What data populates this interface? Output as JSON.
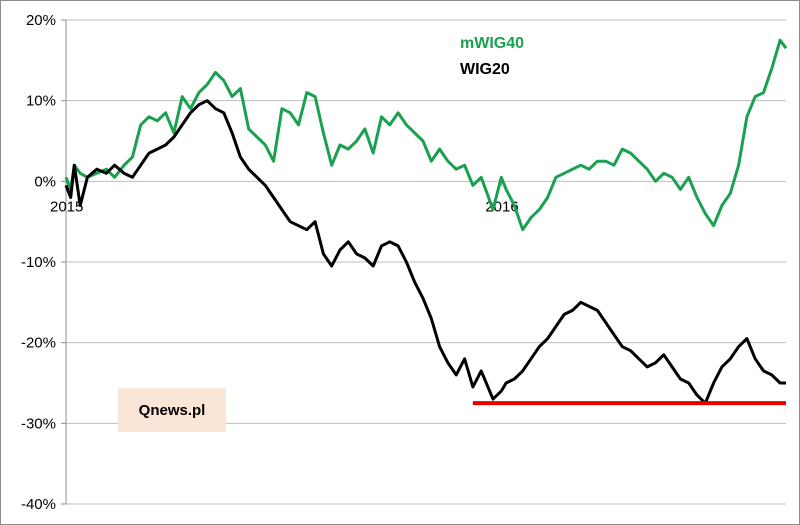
{
  "chart_data": {
    "type": "line",
    "title": "",
    "xlabel": "",
    "ylabel": "",
    "ylim": [
      -40,
      20
    ],
    "y_ticks": [
      "20%",
      "10%",
      "0%",
      "-10%",
      "-20%",
      "-30%",
      "-40%"
    ],
    "y_tick_values": [
      20,
      10,
      0,
      -10,
      -20,
      -30,
      -40
    ],
    "x_range": [
      "2015-01-02",
      "2016-08-31"
    ],
    "x_tick_labels": [
      {
        "label": "2015",
        "date": "2015-01-02"
      },
      {
        "label": "2016",
        "date": "2016-01-04"
      }
    ],
    "grid": "horizontal",
    "legend_placement": "top-right",
    "series": [
      {
        "name": "mWIG40",
        "color": "#1aa150",
        "dates": [
          "2015-01-02",
          "2015-01-06",
          "2015-01-09",
          "2015-01-14",
          "2015-01-20",
          "2015-01-28",
          "2015-02-05",
          "2015-02-12",
          "2015-02-20",
          "2015-02-27",
          "2015-03-06",
          "2015-03-13",
          "2015-03-20",
          "2015-03-27",
          "2015-04-03",
          "2015-04-10",
          "2015-04-17",
          "2015-04-24",
          "2015-05-01",
          "2015-05-08",
          "2015-05-15",
          "2015-05-22",
          "2015-05-29",
          "2015-06-05",
          "2015-06-12",
          "2015-06-19",
          "2015-06-26",
          "2015-07-03",
          "2015-07-10",
          "2015-07-17",
          "2015-07-24",
          "2015-07-31",
          "2015-08-07",
          "2015-08-14",
          "2015-08-21",
          "2015-08-28",
          "2015-09-04",
          "2015-09-11",
          "2015-09-18",
          "2015-09-25",
          "2015-10-02",
          "2015-10-09",
          "2015-10-16",
          "2015-10-23",
          "2015-10-30",
          "2015-11-06",
          "2015-11-13",
          "2015-11-20",
          "2015-11-27",
          "2015-12-04",
          "2015-12-11",
          "2015-12-18",
          "2015-12-28",
          "2016-01-04",
          "2016-01-08",
          "2016-01-15",
          "2016-01-22",
          "2016-01-29",
          "2016-02-05",
          "2016-02-12",
          "2016-02-19",
          "2016-02-26",
          "2016-03-04",
          "2016-03-11",
          "2016-03-18",
          "2016-03-25",
          "2016-04-01",
          "2016-04-08",
          "2016-04-15",
          "2016-04-22",
          "2016-04-29",
          "2016-05-06",
          "2016-05-13",
          "2016-05-20",
          "2016-05-27",
          "2016-06-03",
          "2016-06-10",
          "2016-06-17",
          "2016-06-24",
          "2016-07-01",
          "2016-07-08",
          "2016-07-15",
          "2016-07-22",
          "2016-07-29",
          "2016-08-05",
          "2016-08-12",
          "2016-08-19",
          "2016-08-26",
          "2016-08-31"
        ],
        "values": [
          0.5,
          -1.0,
          2.0,
          1.0,
          0.5,
          1.0,
          1.5,
          0.5,
          2.0,
          3.0,
          7.0,
          8.0,
          7.5,
          8.5,
          6.0,
          10.5,
          9.0,
          11.0,
          12.0,
          13.5,
          12.5,
          10.5,
          11.5,
          6.5,
          5.5,
          4.5,
          2.5,
          9.0,
          8.5,
          7.0,
          11.0,
          10.5,
          6.0,
          2.0,
          4.5,
          4.0,
          5.0,
          6.5,
          3.5,
          8.0,
          7.0,
          8.5,
          7.0,
          6.0,
          5.0,
          2.5,
          4.0,
          2.5,
          1.5,
          2.0,
          -0.5,
          0.5,
          -3.5,
          0.5,
          -1.0,
          -3.0,
          -6.0,
          -4.5,
          -3.5,
          -2.0,
          0.5,
          1.0,
          1.5,
          2.0,
          1.5,
          2.5,
          2.5,
          2.0,
          4.0,
          3.5,
          2.5,
          1.5,
          0.0,
          1.0,
          0.5,
          -1.0,
          0.5,
          -2.0,
          -4.0,
          -5.5,
          -3.0,
          -1.5,
          2.0,
          8.0,
          10.5,
          11.0,
          14.0,
          17.5,
          16.5
        ]
      },
      {
        "name": "WIG20",
        "color": "#000000",
        "dates": [
          "2015-01-02",
          "2015-01-06",
          "2015-01-09",
          "2015-01-14",
          "2015-01-20",
          "2015-01-28",
          "2015-02-05",
          "2015-02-12",
          "2015-02-20",
          "2015-02-27",
          "2015-03-06",
          "2015-03-13",
          "2015-03-20",
          "2015-03-27",
          "2015-04-03",
          "2015-04-10",
          "2015-04-17",
          "2015-04-24",
          "2015-05-01",
          "2015-05-08",
          "2015-05-15",
          "2015-05-22",
          "2015-05-29",
          "2015-06-05",
          "2015-06-12",
          "2015-06-19",
          "2015-06-26",
          "2015-07-03",
          "2015-07-10",
          "2015-07-17",
          "2015-07-24",
          "2015-07-31",
          "2015-08-07",
          "2015-08-14",
          "2015-08-21",
          "2015-08-28",
          "2015-09-04",
          "2015-09-11",
          "2015-09-18",
          "2015-09-25",
          "2015-10-02",
          "2015-10-09",
          "2015-10-16",
          "2015-10-23",
          "2015-10-30",
          "2015-11-06",
          "2015-11-13",
          "2015-11-20",
          "2015-11-27",
          "2015-12-04",
          "2015-12-11",
          "2015-12-18",
          "2015-12-28",
          "2016-01-04",
          "2016-01-08",
          "2016-01-15",
          "2016-01-22",
          "2016-01-29",
          "2016-02-05",
          "2016-02-12",
          "2016-02-19",
          "2016-02-26",
          "2016-03-04",
          "2016-03-11",
          "2016-03-18",
          "2016-03-25",
          "2016-04-01",
          "2016-04-08",
          "2016-04-15",
          "2016-04-22",
          "2016-04-29",
          "2016-05-06",
          "2016-05-13",
          "2016-05-20",
          "2016-05-27",
          "2016-06-03",
          "2016-06-10",
          "2016-06-17",
          "2016-06-24",
          "2016-07-01",
          "2016-07-08",
          "2016-07-15",
          "2016-07-22",
          "2016-07-29",
          "2016-08-05",
          "2016-08-12",
          "2016-08-19",
          "2016-08-26",
          "2016-08-31"
        ],
        "values": [
          -0.5,
          -2.0,
          2.0,
          -3.0,
          0.5,
          1.5,
          1.0,
          2.0,
          1.0,
          0.5,
          2.0,
          3.5,
          4.0,
          4.5,
          5.5,
          7.0,
          8.5,
          9.5,
          10.0,
          9.0,
          8.5,
          6.0,
          3.0,
          1.5,
          0.5,
          -0.5,
          -2.0,
          -3.5,
          -5.0,
          -5.5,
          -6.0,
          -5.0,
          -9.0,
          -10.5,
          -8.5,
          -7.5,
          -9.0,
          -9.5,
          -10.5,
          -8.0,
          -7.5,
          -8.0,
          -10.0,
          -12.5,
          -14.5,
          -17.0,
          -20.5,
          -22.5,
          -24.0,
          -22.0,
          -25.5,
          -23.5,
          -27.0,
          -26.0,
          -25.0,
          -24.5,
          -23.5,
          -22.0,
          -20.5,
          -19.5,
          -18.0,
          -16.5,
          -16.0,
          -15.0,
          -15.5,
          -16.0,
          -17.5,
          -19.0,
          -20.5,
          -21.0,
          -22.0,
          -23.0,
          -22.5,
          -21.5,
          -23.0,
          -24.5,
          -25.0,
          -26.5,
          -27.5,
          -25.0,
          -23.0,
          -22.0,
          -20.5,
          -19.5,
          -22.0,
          -23.5,
          -24.0,
          -25.0,
          -25.0
        ]
      }
    ],
    "reference_line": {
      "value": -27.5,
      "start_date": "2015-12-11",
      "end_date": "2016-08-31",
      "color": "#e60000"
    }
  },
  "legend": {
    "items": [
      {
        "label": "mWIG40",
        "color": "#1aa150"
      },
      {
        "label": "WIG20",
        "color": "#000000"
      }
    ]
  },
  "watermark": {
    "text": "Qnews.pl"
  },
  "colors": {
    "grid": "#bfbfbf",
    "axis": "#8c8c8c",
    "watermark_bg": "#fbe5d6"
  }
}
